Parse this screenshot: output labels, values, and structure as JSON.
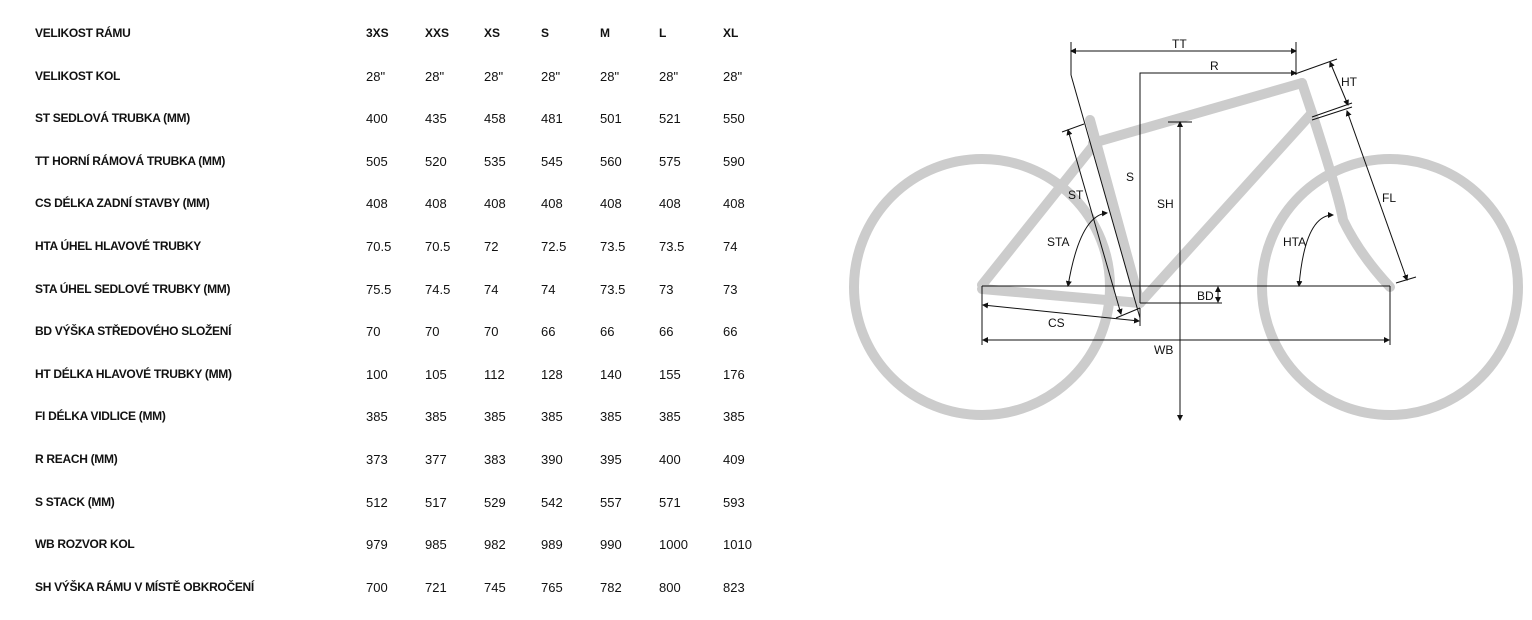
{
  "table": {
    "header_label": "VELIKOST RÁMU",
    "sizes": [
      "3XS",
      "XXS",
      "XS",
      "S",
      "M",
      "L",
      "XL"
    ],
    "rows": [
      {
        "label": "VELIKOST KOL",
        "values": [
          "28\"",
          "28\"",
          "28\"",
          "28\"",
          "28\"",
          "28\"",
          "28\""
        ]
      },
      {
        "label": "ST SEDLOVÁ TRUBKA (MM)",
        "values": [
          "400",
          "435",
          "458",
          "481",
          "501",
          "521",
          "550"
        ]
      },
      {
        "label": "TT HORNÍ RÁMOVÁ TRUBKA (MM)",
        "values": [
          "505",
          "520",
          "535",
          "545",
          "560",
          "575",
          "590"
        ]
      },
      {
        "label": "CS DÉLKA ZADNÍ STAVBY (MM)",
        "values": [
          "408",
          "408",
          "408",
          "408",
          "408",
          "408",
          "408"
        ]
      },
      {
        "label": "HTA ÚHEL HLAVOVÉ TRUBKY",
        "values": [
          "70.5",
          "70.5",
          "72",
          "72.5",
          "73.5",
          "73.5",
          "74"
        ]
      },
      {
        "label": "STA ÚHEL SEDLOVÉ TRUBKY (MM)",
        "values": [
          "75.5",
          "74.5",
          "74",
          "74",
          "73.5",
          "73",
          "73"
        ]
      },
      {
        "label": "BD VÝŠKA STŘEDOVÉHO SLOŽENÍ",
        "values": [
          "70",
          "70",
          "70",
          "66",
          "66",
          "66",
          "66"
        ]
      },
      {
        "label": "HT DÉLKA HLAVOVÉ TRUBKY (MM)",
        "values": [
          "100",
          "105",
          "112",
          "128",
          "140",
          "155",
          "176"
        ]
      },
      {
        "label": "FI DÉLKA VIDLICE (MM)",
        "values": [
          "385",
          "385",
          "385",
          "385",
          "385",
          "385",
          "385"
        ]
      },
      {
        "label": "R REACH (MM)",
        "values": [
          "373",
          "377",
          "383",
          "390",
          "395",
          "400",
          "409"
        ]
      },
      {
        "label": "S STACK (MM)",
        "values": [
          "512",
          "517",
          "529",
          "542",
          "557",
          "571",
          "593"
        ]
      },
      {
        "label": "WB ROZVOR KOL",
        "values": [
          "979",
          "985",
          "982",
          "989",
          "990",
          "1000",
          "1010"
        ]
      },
      {
        "label": "SH VÝŠKA RÁMU V MÍSTĚ OBKROČENÍ",
        "values": [
          "700",
          "721",
          "745",
          "765",
          "782",
          "800",
          "823"
        ]
      }
    ]
  },
  "diagram": {
    "frame_color": "#cccccc",
    "labels": {
      "TT": "TT",
      "R": "R",
      "HT": "HT",
      "S": "S",
      "SH": "SH",
      "ST": "ST",
      "FL": "FL",
      "STA": "STA",
      "HTA": "HTA",
      "BD": "BD",
      "CS": "CS",
      "WB": "WB"
    }
  }
}
